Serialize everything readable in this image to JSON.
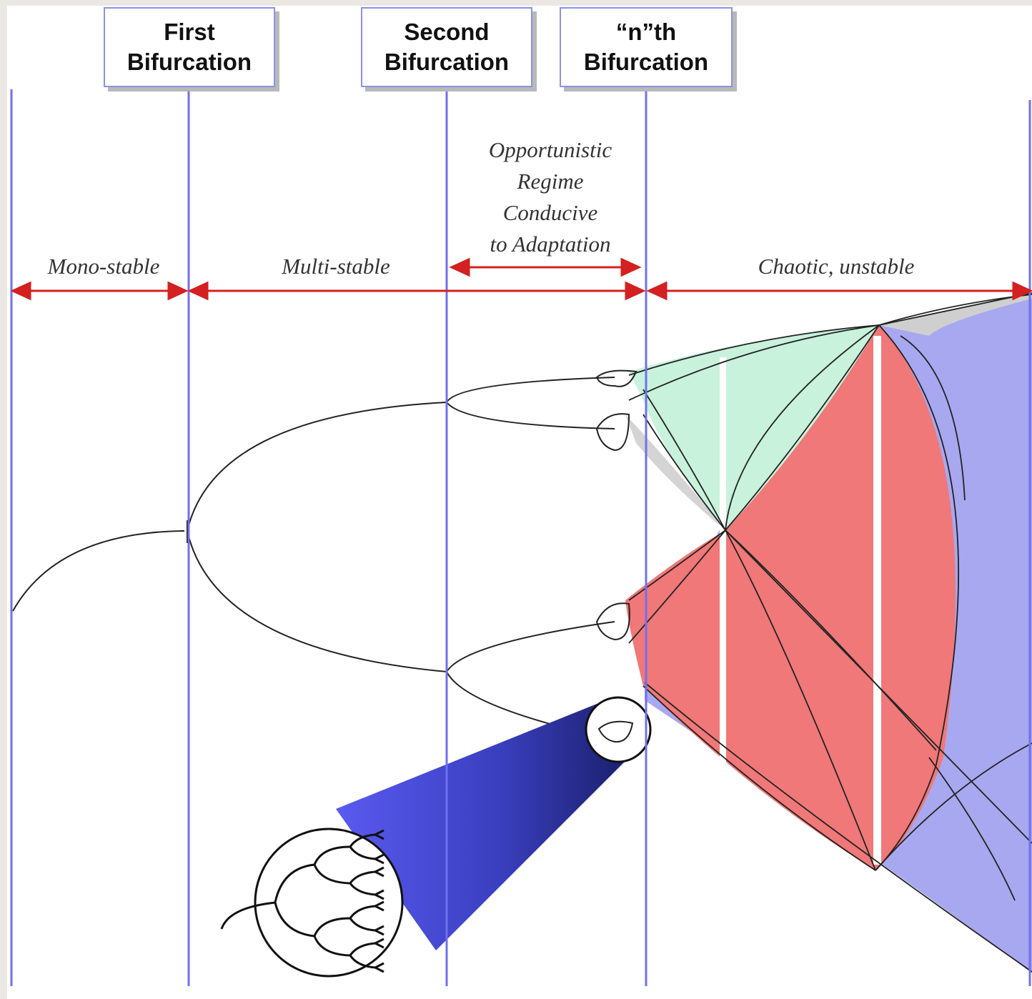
{
  "headers": {
    "first": {
      "line1": "First",
      "line2": "Bifurcation"
    },
    "second": {
      "line1": "Second",
      "line2": "Bifurcation"
    },
    "nth": {
      "line1": "“n”th",
      "line2": "Bifurcation"
    }
  },
  "regions": {
    "mono": "Mono-stable",
    "multi": "Multi-stable",
    "chaotic": "Chaotic, unstable"
  },
  "opportunistic": {
    "line1": "Opportunistic",
    "line2": "Regime",
    "line3": "Conducive",
    "line4": "to Adaptation"
  },
  "colors": {
    "guide_line": "#7070ee",
    "arrow": "#d42020",
    "red_region": "#f07878",
    "mint_region": "#c8f2dc",
    "gray_region": "#d4d4d4",
    "blue_region": "#a8a8f0",
    "zoom_cone_dark": "#1c2370",
    "zoom_cone_light": "#5050ee"
  }
}
